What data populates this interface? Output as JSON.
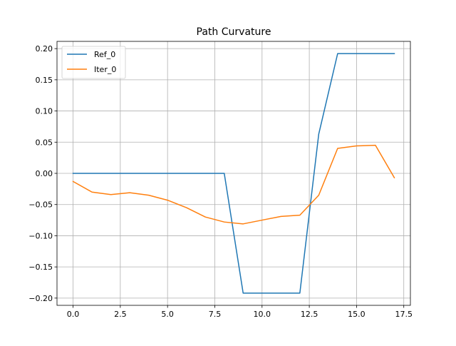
{
  "chart_data": {
    "type": "line",
    "title": "Path Curvature",
    "xlabel": "",
    "ylabel": "",
    "xlim": [
      -0.85,
      17.85
    ],
    "ylim": [
      -0.2116,
      0.2116
    ],
    "xticks": [
      0.0,
      2.5,
      5.0,
      7.5,
      10.0,
      12.5,
      15.0,
      17.5
    ],
    "xtick_labels": [
      "0.0",
      "2.5",
      "5.0",
      "7.5",
      "10.0",
      "12.5",
      "15.0",
      "17.5"
    ],
    "yticks": [
      -0.2,
      -0.15,
      -0.1,
      -0.05,
      0.0,
      0.05,
      0.1,
      0.15,
      0.2
    ],
    "ytick_labels": [
      "−0.20",
      "−0.15",
      "−0.10",
      "−0.05",
      "0.00",
      "0.05",
      "0.10",
      "0.15",
      "0.20"
    ],
    "grid": true,
    "legend_position": "upper-left",
    "series": [
      {
        "name": "Ref_0",
        "color": "#1f77b4",
        "x": [
          0,
          1,
          2,
          3,
          4,
          5,
          6,
          7,
          8,
          9,
          10,
          11,
          12,
          13,
          14,
          15,
          16,
          17
        ],
        "y": [
          0,
          0,
          0,
          0,
          0,
          0,
          0,
          0,
          0,
          -0.192,
          -0.192,
          -0.192,
          -0.192,
          0.063,
          0.192,
          0.192,
          0.192,
          0.192
        ]
      },
      {
        "name": "Iter_0",
        "color": "#ff7f0e",
        "x": [
          0,
          1,
          2,
          3,
          4,
          5,
          6,
          7,
          8,
          9,
          10,
          11,
          12,
          13,
          14,
          15,
          16,
          17
        ],
        "y": [
          -0.013,
          -0.03,
          -0.034,
          -0.031,
          -0.035,
          -0.043,
          -0.055,
          -0.07,
          -0.078,
          -0.081,
          -0.075,
          -0.069,
          -0.067,
          -0.035,
          0.04,
          0.044,
          0.045,
          -0.007
        ]
      }
    ]
  }
}
